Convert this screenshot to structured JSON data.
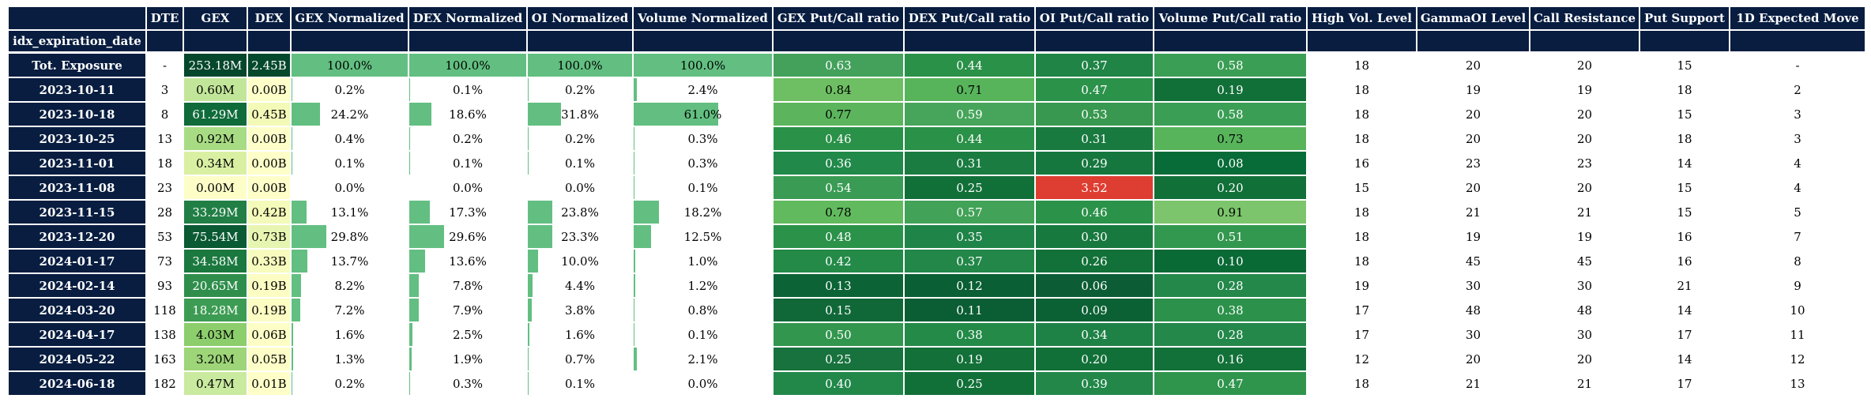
{
  "chart_data": {
    "type": "table",
    "index_name": "idx_expiration_date",
    "columns": [
      "DTE",
      "GEX",
      "DEX",
      "GEX Normalized",
      "DEX Normalized",
      "OI Normalized",
      "Volume Normalized",
      "GEX Put/Call ratio",
      "DEX Put/Call ratio",
      "OI Put/Call ratio",
      "Volume Put/Call ratio",
      "High Vol. Level",
      "GammaOI Level",
      "Call Resistance",
      "Put Support",
      "1D Expected Move"
    ],
    "rows": [
      {
        "label": "Tot. Exposure",
        "dte": "-",
        "gex": "253.18M",
        "dex": "2.45B",
        "gex_norm": "100.0%",
        "dex_norm": "100.0%",
        "oi_norm": "100.0%",
        "vol_norm": "100.0%",
        "gex_pc": "0.63",
        "dex_pc": "0.44",
        "oi_pc": "0.37",
        "vol_pc": "0.58",
        "hvl": "18",
        "gammaoi": "20",
        "call_res": "20",
        "put_sup": "15",
        "exp_move": "-"
      },
      {
        "label": "2023-10-11",
        "dte": "3",
        "gex": "0.60M",
        "dex": "0.00B",
        "gex_norm": "0.2%",
        "dex_norm": "0.1%",
        "oi_norm": "0.2%",
        "vol_norm": "2.4%",
        "gex_pc": "0.84",
        "dex_pc": "0.71",
        "oi_pc": "0.47",
        "vol_pc": "0.19",
        "hvl": "18",
        "gammaoi": "19",
        "call_res": "19",
        "put_sup": "18",
        "exp_move": "2"
      },
      {
        "label": "2023-10-18",
        "dte": "8",
        "gex": "61.29M",
        "dex": "0.45B",
        "gex_norm": "24.2%",
        "dex_norm": "18.6%",
        "oi_norm": "31.8%",
        "vol_norm": "61.0%",
        "gex_pc": "0.77",
        "dex_pc": "0.59",
        "oi_pc": "0.53",
        "vol_pc": "0.58",
        "hvl": "18",
        "gammaoi": "20",
        "call_res": "20",
        "put_sup": "15",
        "exp_move": "3"
      },
      {
        "label": "2023-10-25",
        "dte": "13",
        "gex": "0.92M",
        "dex": "0.00B",
        "gex_norm": "0.4%",
        "dex_norm": "0.2%",
        "oi_norm": "0.2%",
        "vol_norm": "0.3%",
        "gex_pc": "0.46",
        "dex_pc": "0.44",
        "oi_pc": "0.31",
        "vol_pc": "0.73",
        "hvl": "18",
        "gammaoi": "20",
        "call_res": "20",
        "put_sup": "18",
        "exp_move": "3"
      },
      {
        "label": "2023-11-01",
        "dte": "18",
        "gex": "0.34M",
        "dex": "0.00B",
        "gex_norm": "0.1%",
        "dex_norm": "0.1%",
        "oi_norm": "0.1%",
        "vol_norm": "0.3%",
        "gex_pc": "0.36",
        "dex_pc": "0.31",
        "oi_pc": "0.29",
        "vol_pc": "0.08",
        "hvl": "16",
        "gammaoi": "23",
        "call_res": "23",
        "put_sup": "14",
        "exp_move": "4"
      },
      {
        "label": "2023-11-08",
        "dte": "23",
        "gex": "0.00M",
        "dex": "0.00B",
        "gex_norm": "0.0%",
        "dex_norm": "0.0%",
        "oi_norm": "0.0%",
        "vol_norm": "0.1%",
        "gex_pc": "0.54",
        "dex_pc": "0.25",
        "oi_pc": "3.52",
        "vol_pc": "0.20",
        "hvl": "15",
        "gammaoi": "20",
        "call_res": "20",
        "put_sup": "15",
        "exp_move": "4"
      },
      {
        "label": "2023-11-15",
        "dte": "28",
        "gex": "33.29M",
        "dex": "0.42B",
        "gex_norm": "13.1%",
        "dex_norm": "17.3%",
        "oi_norm": "23.8%",
        "vol_norm": "18.2%",
        "gex_pc": "0.78",
        "dex_pc": "0.57",
        "oi_pc": "0.46",
        "vol_pc": "0.91",
        "hvl": "18",
        "gammaoi": "21",
        "call_res": "21",
        "put_sup": "15",
        "exp_move": "5"
      },
      {
        "label": "2023-12-20",
        "dte": "53",
        "gex": "75.54M",
        "dex": "0.73B",
        "gex_norm": "29.8%",
        "dex_norm": "29.6%",
        "oi_norm": "23.3%",
        "vol_norm": "12.5%",
        "gex_pc": "0.48",
        "dex_pc": "0.35",
        "oi_pc": "0.30",
        "vol_pc": "0.51",
        "hvl": "18",
        "gammaoi": "19",
        "call_res": "19",
        "put_sup": "16",
        "exp_move": "7"
      },
      {
        "label": "2024-01-17",
        "dte": "73",
        "gex": "34.58M",
        "dex": "0.33B",
        "gex_norm": "13.7%",
        "dex_norm": "13.6%",
        "oi_norm": "10.0%",
        "vol_norm": "1.0%",
        "gex_pc": "0.42",
        "dex_pc": "0.37",
        "oi_pc": "0.26",
        "vol_pc": "0.10",
        "hvl": "18",
        "gammaoi": "45",
        "call_res": "45",
        "put_sup": "16",
        "exp_move": "8"
      },
      {
        "label": "2024-02-14",
        "dte": "93",
        "gex": "20.65M",
        "dex": "0.19B",
        "gex_norm": "8.2%",
        "dex_norm": "7.8%",
        "oi_norm": "4.4%",
        "vol_norm": "1.2%",
        "gex_pc": "0.13",
        "dex_pc": "0.12",
        "oi_pc": "0.06",
        "vol_pc": "0.28",
        "hvl": "19",
        "gammaoi": "30",
        "call_res": "30",
        "put_sup": "21",
        "exp_move": "9"
      },
      {
        "label": "2024-03-20",
        "dte": "118",
        "gex": "18.28M",
        "dex": "0.19B",
        "gex_norm": "7.2%",
        "dex_norm": "7.9%",
        "oi_norm": "3.8%",
        "vol_norm": "0.8%",
        "gex_pc": "0.15",
        "dex_pc": "0.11",
        "oi_pc": "0.09",
        "vol_pc": "0.38",
        "hvl": "17",
        "gammaoi": "48",
        "call_res": "48",
        "put_sup": "14",
        "exp_move": "10"
      },
      {
        "label": "2024-04-17",
        "dte": "138",
        "gex": "4.03M",
        "dex": "0.06B",
        "gex_norm": "1.6%",
        "dex_norm": "2.5%",
        "oi_norm": "1.6%",
        "vol_norm": "0.1%",
        "gex_pc": "0.50",
        "dex_pc": "0.38",
        "oi_pc": "0.34",
        "vol_pc": "0.28",
        "hvl": "17",
        "gammaoi": "30",
        "call_res": "30",
        "put_sup": "17",
        "exp_move": "11"
      },
      {
        "label": "2024-05-22",
        "dte": "163",
        "gex": "3.20M",
        "dex": "0.05B",
        "gex_norm": "1.3%",
        "dex_norm": "1.9%",
        "oi_norm": "0.7%",
        "vol_norm": "2.1%",
        "gex_pc": "0.25",
        "dex_pc": "0.19",
        "oi_pc": "0.20",
        "vol_pc": "0.16",
        "hvl": "12",
        "gammaoi": "20",
        "call_res": "20",
        "put_sup": "14",
        "exp_move": "12"
      },
      {
        "label": "2024-06-18",
        "dte": "182",
        "gex": "0.47M",
        "dex": "0.01B",
        "gex_norm": "0.2%",
        "dex_norm": "0.3%",
        "oi_norm": "0.1%",
        "vol_norm": "0.0%",
        "gex_pc": "0.40",
        "dex_pc": "0.25",
        "oi_pc": "0.39",
        "vol_pc": "0.47",
        "hvl": "18",
        "gammaoi": "21",
        "call_res": "21",
        "put_sup": "17",
        "exp_move": "13"
      }
    ]
  },
  "colors": {
    "header_bg": "#081d40",
    "header_text": "#ffffff",
    "bar_fill": "#62bf81"
  },
  "cell_colors": {
    "gex": [
      "#04472c",
      "#c2e699",
      "#0f6b3a",
      "#a8dc84",
      "#d9f0a3",
      "#fdfec7",
      "#217f45",
      "#0a5a33",
      "#1b793f",
      "#2f8e4b",
      "#3d9c53",
      "#8ccd6c",
      "#9dd578",
      "#c9ea9f"
    ],
    "dex": [
      "#05492d",
      "#fefec9",
      "#f3fab8",
      "#fefec9",
      "#fefec9",
      "#fefec9",
      "#f4fab9",
      "#e7f5b2",
      "#f7fbbd",
      "#fbfdc3",
      "#fbfdc3",
      "#fdfec6",
      "#fdfec7",
      "#fefec9"
    ],
    "gex_pc": [
      "#44a15c",
      "#6ebf63",
      "#5cb55c",
      "#2a9148",
      "#21894a",
      "#3a9c54",
      "#62ba5e",
      "#2b924a",
      "#238a48",
      "#0c6436",
      "#106838",
      "#32964e",
      "#17723d",
      "#21884a"
    ],
    "dex_pc": [
      "#2a9148",
      "#58b45b",
      "#46a55a",
      "#2a9148",
      "#1a7c41",
      "#117038",
      "#42a257",
      "#1f8448",
      "#228749",
      "#0a5f34",
      "#0b5e34",
      "#238a48",
      "#127038",
      "#117038"
    ],
    "oi_pc": [
      "#1f8446",
      "#2b924a",
      "#38984f",
      "#197a3f",
      "#16773e",
      "#de3d31",
      "#2b924a",
      "#18793f",
      "#127138",
      "#0c5d35",
      "#0b6134",
      "#1e8246",
      "#117038",
      "#228749"
    ],
    "vol_pc": [
      "#3b9e55",
      "#117038",
      "#3b9e55",
      "#58b45b",
      "#076c37",
      "#117038",
      "#7cc56c",
      "#33984f",
      "#0a6a36",
      "#23884a",
      "#2c924b",
      "#23884a",
      "#127138",
      "#2f954d"
    ]
  }
}
